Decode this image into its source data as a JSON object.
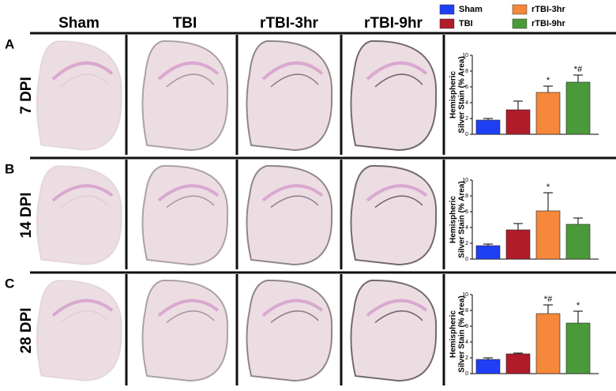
{
  "panels": {
    "letters": [
      "A",
      "B",
      "C"
    ],
    "columns": [
      "Sham",
      "TBI",
      "rTBI-3hr",
      "rTBI-9hr"
    ],
    "rows": [
      "7 DPI",
      "14 DPI",
      "28 DPI"
    ]
  },
  "legend": [
    {
      "name": "Sham",
      "color": "#1f3ff5"
    },
    {
      "name": "TBI",
      "color": "#b01c2a"
    },
    {
      "name": "rTBI-3hr",
      "color": "#f5883a"
    },
    {
      "name": "rTBI-9hr",
      "color": "#4a9a3a"
    }
  ],
  "chart_data": [
    {
      "type": "bar",
      "ylabel": [
        "Hemispheric",
        "Silver Stain (% Area)"
      ],
      "values": [
        1.8,
        3.1,
        5.3,
        6.6
      ],
      "errors": [
        0.2,
        1.1,
        0.8,
        0.9
      ],
      "annotations": [
        null,
        null,
        "*",
        "*#"
      ],
      "ylim": [
        0,
        10
      ],
      "yticks": [
        0,
        2,
        4,
        6,
        8,
        10
      ]
    },
    {
      "type": "bar",
      "ylabel": [
        "Hemispheric",
        "Silver Stain (% Area)"
      ],
      "values": [
        1.7,
        3.7,
        6.1,
        4.4
      ],
      "errors": [
        0.2,
        0.8,
        2.3,
        0.8
      ],
      "annotations": [
        null,
        null,
        "*",
        null
      ],
      "ylim": [
        0,
        10
      ],
      "yticks": [
        0,
        2,
        4,
        6,
        8,
        10
      ]
    },
    {
      "type": "bar",
      "ylabel": [
        "Hemispheric",
        "Silver Stain (% Area)"
      ],
      "values": [
        1.8,
        2.5,
        7.6,
        6.4
      ],
      "errors": [
        0.2,
        0.1,
        1.1,
        1.5
      ],
      "annotations": [
        null,
        null,
        "*#",
        "*"
      ],
      "ylim": [
        0,
        10
      ],
      "yticks": [
        0,
        2,
        4,
        6,
        8,
        10
      ]
    }
  ]
}
